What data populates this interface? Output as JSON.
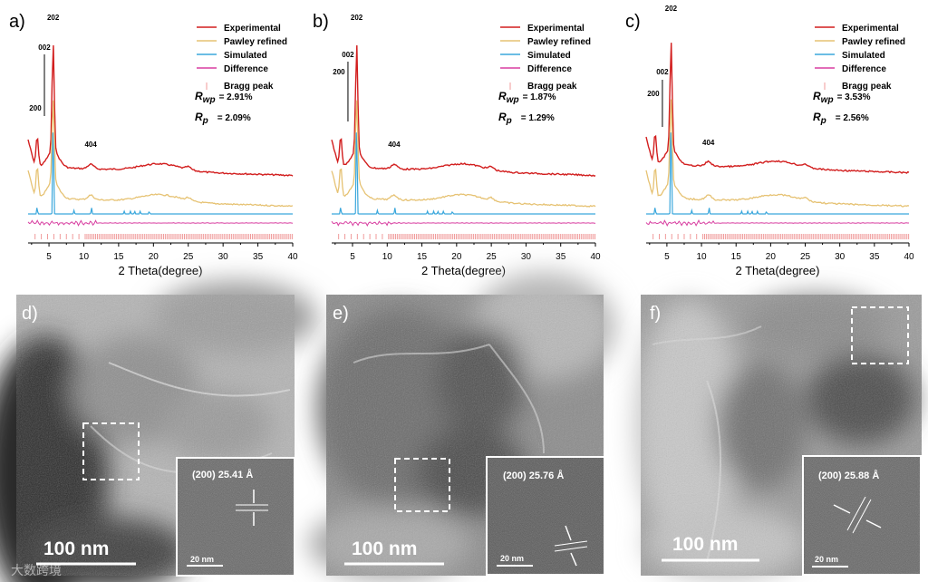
{
  "colors": {
    "experimental": "#d21e1e",
    "pawley": "#e6c273",
    "simulated": "#3aa7dc",
    "difference": "#d83fa1",
    "bragg": "#f09a9a"
  },
  "xrd_panels": [
    {
      "label": "a)",
      "rwp": "= 2.91%",
      "rp": "= 2.09%"
    },
    {
      "label": "b)",
      "rwp": "= 1.87%",
      "rp": "= 1.29%"
    },
    {
      "label": "c)",
      "rwp": "= 3.53%",
      "rp": "= 2.56%"
    }
  ],
  "legend": [
    "Experimental",
    "Pawley refined",
    "Simulated",
    "Difference",
    "Bragg peak"
  ],
  "rwp_label": {
    "r": "R",
    "sub": "wp"
  },
  "rp_label": {
    "r": "R",
    "sub": "p"
  },
  "x_axis_label": "2 Theta(degree)",
  "x_ticks": [
    "5",
    "10",
    "15",
    "20",
    "25",
    "30",
    "35",
    "40"
  ],
  "peak_labels": {
    "p200": "200",
    "p002": "002",
    "p202": "202",
    "p404": "404"
  },
  "tem_panels": [
    {
      "label": "d)",
      "scale": "100 nm",
      "inset_text": "(200)  25.41 Å",
      "inset_scale": "20 nm"
    },
    {
      "label": "e)",
      "scale": "100 nm",
      "inset_text": "(200)  25.76 Å",
      "inset_scale": "20 nm"
    },
    {
      "label": "f)",
      "scale": "100 nm",
      "inset_text": "(200)  25.88 Å",
      "inset_scale": "20 nm"
    }
  ],
  "watermark": "大数跨境",
  "chart_data": [
    {
      "type": "line",
      "title": "a)",
      "xlabel": "2 Theta(degree)",
      "ylabel": "",
      "xlim": [
        2,
        40
      ],
      "series": [
        {
          "name": "Experimental"
        },
        {
          "name": "Pawley refined"
        },
        {
          "name": "Simulated"
        },
        {
          "name": "Difference"
        },
        {
          "name": "Bragg peak"
        }
      ],
      "annotations": [
        "200",
        "002",
        "202",
        "404",
        "Rwp = 2.91%",
        "Rp = 2.09%"
      ]
    },
    {
      "type": "line",
      "title": "b)",
      "xlabel": "2 Theta(degree)",
      "ylabel": "",
      "xlim": [
        2,
        40
      ],
      "series": [
        {
          "name": "Experimental"
        },
        {
          "name": "Pawley refined"
        },
        {
          "name": "Simulated"
        },
        {
          "name": "Difference"
        },
        {
          "name": "Bragg peak"
        }
      ],
      "annotations": [
        "200",
        "002",
        "202",
        "404",
        "Rwp = 1.87%",
        "Rp = 1.29%"
      ]
    },
    {
      "type": "line",
      "title": "c)",
      "xlabel": "2 Theta(degree)",
      "ylabel": "",
      "xlim": [
        2,
        40
      ],
      "series": [
        {
          "name": "Experimental"
        },
        {
          "name": "Pawley refined"
        },
        {
          "name": "Simulated"
        },
        {
          "name": "Difference"
        },
        {
          "name": "Bragg peak"
        }
      ],
      "annotations": [
        "200",
        "002",
        "202",
        "404",
        "Rwp = 3.53%",
        "Rp = 2.56%"
      ]
    }
  ]
}
